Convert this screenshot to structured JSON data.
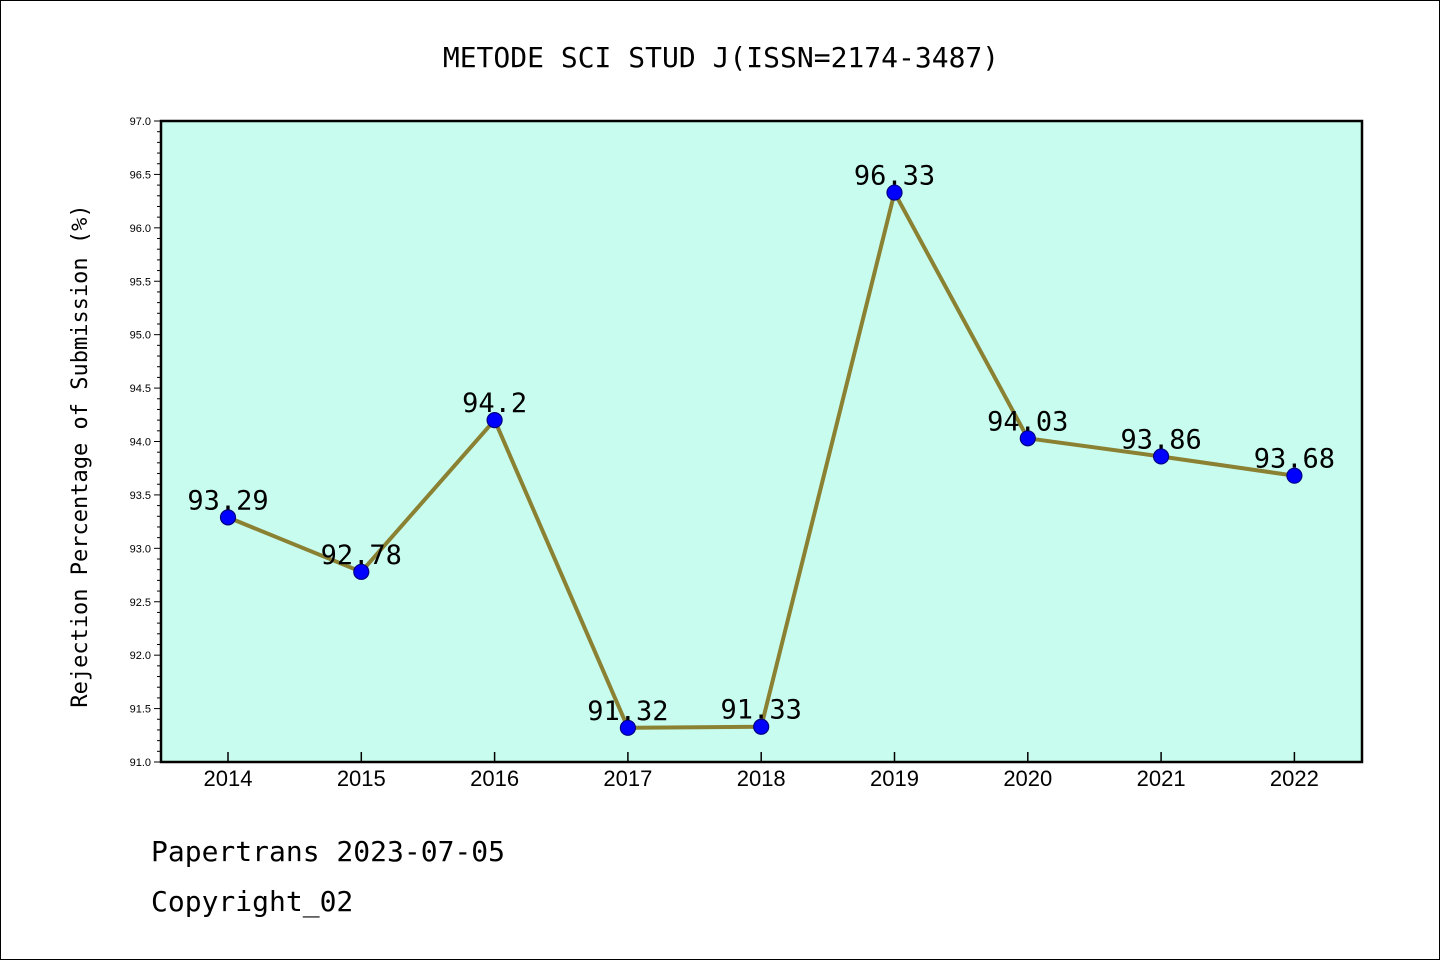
{
  "chart_data": {
    "type": "line",
    "title": "METODE SCI STUD J(ISSN=2174-3487)",
    "xlabel": "",
    "ylabel": "Rejection Percentage of Submission (%)",
    "categories": [
      "2014",
      "2015",
      "2016",
      "2017",
      "2018",
      "2019",
      "2020",
      "2021",
      "2022"
    ],
    "series": [
      {
        "values": [
          93.29,
          92.78,
          94.2,
          91.32,
          91.33,
          96.33,
          94.03,
          93.86,
          93.68
        ]
      }
    ],
    "data_labels": [
      "93.29",
      "92.78",
      "94.2",
      "91.32",
      "91.33",
      "96.33",
      "94.03",
      "93.86",
      "93.68"
    ],
    "ylim": [
      91.0,
      97.0
    ],
    "yticks": [
      "91.0",
      "91.5",
      "92.0",
      "92.5",
      "93.0",
      "93.5",
      "94.0",
      "94.5",
      "95.0",
      "95.5",
      "96.0",
      "96.5",
      "97.0"
    ],
    "grid": false,
    "legend": "none",
    "colors": {
      "plot_background": "#c8fcee",
      "line": "#8b8132",
      "marker": "#0000ff",
      "marker_edge": "#000080"
    }
  },
  "footer": {
    "line1": "Papertrans 2023-07-05",
    "line2": "Copyright_02"
  }
}
